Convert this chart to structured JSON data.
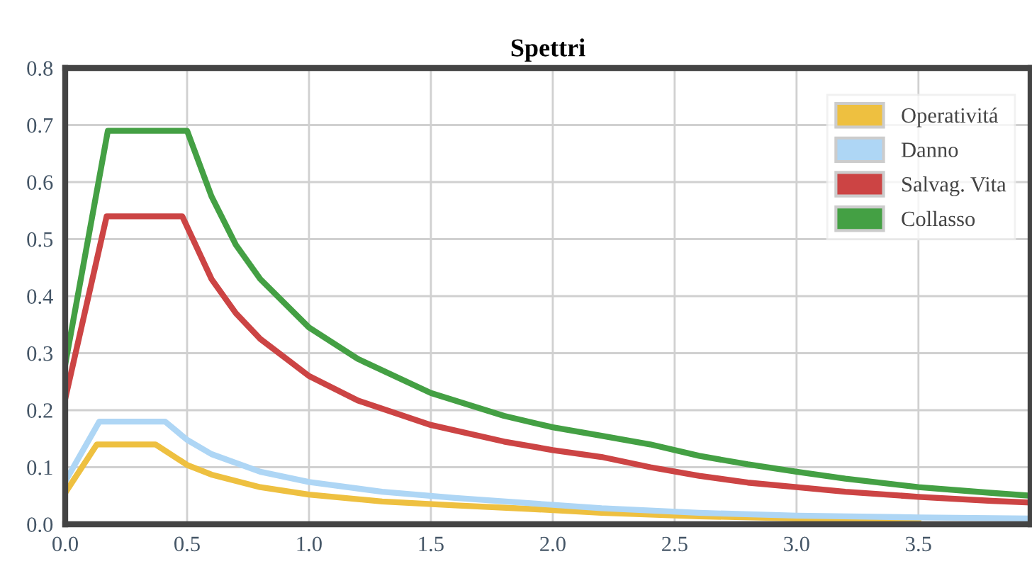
{
  "chart_data": {
    "type": "line",
    "title": "Spettri",
    "xlim": [
      0,
      3.96
    ],
    "xticks": [
      {
        "value": 0,
        "label": "0.0"
      },
      0.5,
      {
        "value": 1,
        "label": "1.0"
      },
      1.5,
      {
        "value": 2,
        "label": "2.0"
      },
      2.5,
      {
        "value": 3,
        "label": "3.0"
      },
      3.5
    ],
    "ylim": [
      0,
      0.8
    ],
    "yticks": [
      {
        "value": 0,
        "label": "0.0"
      },
      0.1,
      0.2,
      0.3,
      0.4,
      0.5,
      0.6,
      0.7,
      0.8
    ],
    "grid": true,
    "legend": "top right",
    "marker": "none",
    "line_style": "solid",
    "series": [
      {
        "name": "Operativitá",
        "color": "#eec040",
        "x": [
          0,
          0.13,
          0.37,
          0.5,
          0.6,
          0.8,
          1.0,
          1.3,
          1.6,
          1.9,
          2.2,
          2.6,
          3.0,
          3.5
        ],
        "values": [
          0.055,
          0.14,
          0.14,
          0.104,
          0.087,
          0.065,
          0.052,
          0.04,
          0.033,
          0.027,
          0.02,
          0.014,
          0.01,
          0.007
        ]
      },
      {
        "name": "Danno",
        "color": "#aed6f5",
        "x": [
          0,
          0.14,
          0.41,
          0.5,
          0.6,
          0.8,
          1.0,
          1.3,
          1.6,
          1.9,
          2.2,
          2.6,
          3.0,
          3.5,
          3.96
        ],
        "values": [
          0.075,
          0.18,
          0.18,
          0.148,
          0.123,
          0.092,
          0.074,
          0.057,
          0.046,
          0.037,
          0.028,
          0.02,
          0.015,
          0.012,
          0.01
        ]
      },
      {
        "name": "Salvag. Vita",
        "color": "#cc4444",
        "x": [
          0,
          0.17,
          0.48,
          0.6,
          0.7,
          0.8,
          1.0,
          1.2,
          1.5,
          1.8,
          2.0,
          2.2,
          2.4,
          2.6,
          2.8,
          3.0,
          3.2,
          3.5,
          3.8,
          3.96
        ],
        "values": [
          0.22,
          0.54,
          0.54,
          0.43,
          0.37,
          0.325,
          0.26,
          0.217,
          0.174,
          0.145,
          0.13,
          0.118,
          0.1,
          0.085,
          0.073,
          0.065,
          0.057,
          0.048,
          0.041,
          0.038
        ]
      },
      {
        "name": "Collasso",
        "color": "#44a044",
        "x": [
          0,
          0.175,
          0.5,
          0.6,
          0.7,
          0.8,
          1.0,
          1.2,
          1.5,
          1.8,
          2.0,
          2.2,
          2.4,
          2.6,
          2.8,
          3.0,
          3.2,
          3.5,
          3.8,
          3.96
        ],
        "values": [
          0.28,
          0.69,
          0.69,
          0.575,
          0.49,
          0.43,
          0.345,
          0.29,
          0.23,
          0.19,
          0.17,
          0.155,
          0.14,
          0.12,
          0.105,
          0.092,
          0.08,
          0.065,
          0.055,
          0.05
        ]
      }
    ]
  }
}
